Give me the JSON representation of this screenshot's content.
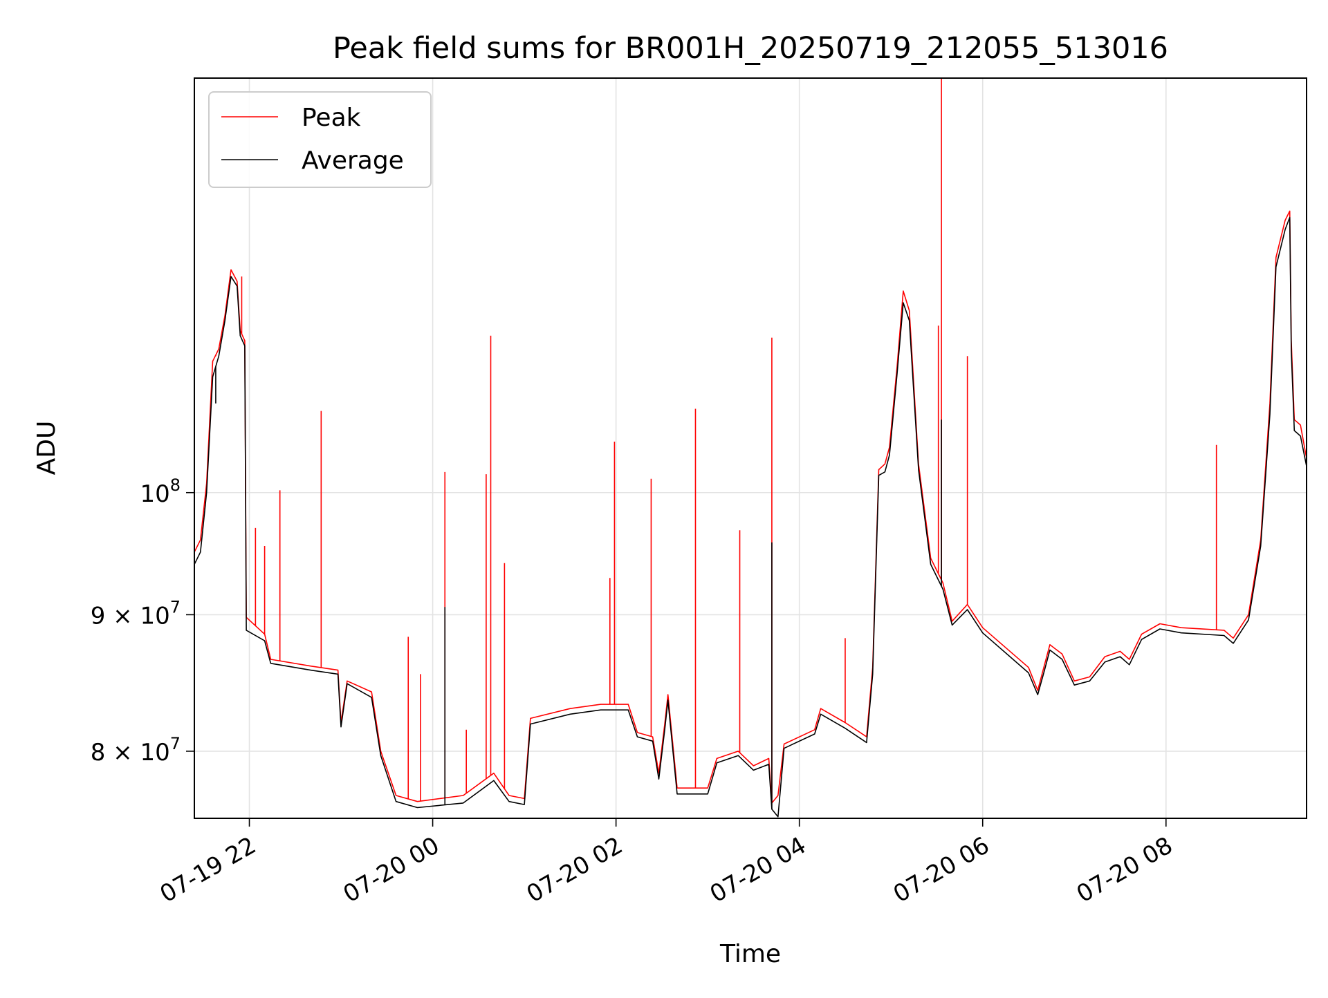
{
  "chart_data": {
    "type": "line",
    "title": "Peak field sums for BR001H_20250719_212055_513016",
    "xlabel": "Time",
    "ylabel": "ADU",
    "y_scale": "log",
    "ylim": [
      75500000,
      143000000
    ],
    "xlim": [
      "2025-07-19 21:24",
      "2025-07-20 09:32"
    ],
    "x_ticks": [
      {
        "value": "2025-07-19 22:00",
        "label": "07-19 22"
      },
      {
        "value": "2025-07-20 00:00",
        "label": "07-20 00"
      },
      {
        "value": "2025-07-20 02:00",
        "label": "07-20 02"
      },
      {
        "value": "2025-07-20 04:00",
        "label": "07-20 04"
      },
      {
        "value": "2025-07-20 06:00",
        "label": "07-20 06"
      },
      {
        "value": "2025-07-20 08:00",
        "label": "07-20 08"
      }
    ],
    "y_ticks": [
      {
        "value": 80000000,
        "base": "8 × 10",
        "exp": "7"
      },
      {
        "value": 90000000,
        "base": "9 × 10",
        "exp": "7"
      },
      {
        "value": 100000000,
        "base": "10",
        "exp": "8"
      }
    ],
    "grid": true,
    "legend": "upper left",
    "series": [
      {
        "name": "Peak",
        "color": "#ff0000",
        "points": [
          [
            "2025-07-19 21:24",
            95.0
          ],
          [
            "2025-07-19 21:28",
            96.0
          ],
          [
            "2025-07-19 21:32",
            100.8
          ],
          [
            "2025-07-19 21:36",
            112.0
          ],
          [
            "2025-07-19 21:40",
            113.2
          ],
          [
            "2025-07-19 21:44",
            116.5
          ],
          [
            "2025-07-19 21:48",
            121.2
          ],
          [
            "2025-07-19 21:52",
            120.0
          ],
          [
            "2025-07-19 21:54",
            115.0
          ],
          [
            "2025-07-19 21:57",
            114.0
          ],
          [
            "2025-07-19 21:58",
            89.8
          ],
          [
            "2025-07-19 22:10",
            88.5
          ],
          [
            "2025-07-19 22:14",
            86.6
          ],
          [
            "2025-07-19 22:40",
            86.1
          ],
          [
            "2025-07-19 22:58",
            85.8
          ],
          [
            "2025-07-19 23:00",
            82.0
          ],
          [
            "2025-07-19 23:04",
            85.0
          ],
          [
            "2025-07-19 23:20",
            84.2
          ],
          [
            "2025-07-19 23:26",
            80.0
          ],
          [
            "2025-07-19 23:36",
            77.0
          ],
          [
            "2025-07-19 23:50",
            76.6
          ],
          [
            "2025-07-20 00:20",
            77.0
          ],
          [
            "2025-07-20 00:40",
            78.5
          ],
          [
            "2025-07-20 00:50",
            77.0
          ],
          [
            "2025-07-20 01:00",
            76.8
          ],
          [
            "2025-07-20 01:04",
            82.3
          ],
          [
            "2025-07-20 01:30",
            83.0
          ],
          [
            "2025-07-20 01:50",
            83.3
          ],
          [
            "2025-07-20 02:08",
            83.3
          ],
          [
            "2025-07-20 02:14",
            81.3
          ],
          [
            "2025-07-20 02:24",
            81.0
          ],
          [
            "2025-07-20 02:28",
            78.5
          ],
          [
            "2025-07-20 02:32",
            82.0
          ],
          [
            "2025-07-20 02:34",
            84.0
          ],
          [
            "2025-07-20 02:40",
            77.5
          ],
          [
            "2025-07-20 03:00",
            77.5
          ],
          [
            "2025-07-20 03:06",
            79.5
          ],
          [
            "2025-07-20 03:20",
            80.0
          ],
          [
            "2025-07-20 03:30",
            79.0
          ],
          [
            "2025-07-20 03:40",
            79.5
          ],
          [
            "2025-07-20 03:42",
            76.5
          ],
          [
            "2025-07-20 03:46",
            77.0
          ],
          [
            "2025-07-20 03:50",
            80.5
          ],
          [
            "2025-07-20 04:10",
            81.5
          ],
          [
            "2025-07-20 04:14",
            83.0
          ],
          [
            "2025-07-20 04:30",
            82.0
          ],
          [
            "2025-07-20 04:44",
            81.0
          ],
          [
            "2025-07-20 04:48",
            86.0
          ],
          [
            "2025-07-20 04:52",
            102.0
          ],
          [
            "2025-07-20 04:56",
            102.5
          ],
          [
            "2025-07-20 04:59",
            104.0
          ],
          [
            "2025-07-20 05:04",
            111.5
          ],
          [
            "2025-07-20 05:08",
            119.0
          ],
          [
            "2025-07-20 05:12",
            117.0
          ],
          [
            "2025-07-20 05:18",
            102.5
          ],
          [
            "2025-07-20 05:26",
            94.5
          ],
          [
            "2025-07-20 05:34",
            92.5
          ],
          [
            "2025-07-20 05:40",
            89.5
          ],
          [
            "2025-07-20 05:50",
            90.8
          ],
          [
            "2025-07-20 06:00",
            89.0
          ],
          [
            "2025-07-20 06:30",
            86.0
          ],
          [
            "2025-07-20 06:36",
            84.3
          ],
          [
            "2025-07-20 06:40",
            86.0
          ],
          [
            "2025-07-20 06:44",
            87.7
          ],
          [
            "2025-07-20 06:52",
            87.0
          ],
          [
            "2025-07-20 07:00",
            85.0
          ],
          [
            "2025-07-20 07:10",
            85.3
          ],
          [
            "2025-07-20 07:20",
            86.8
          ],
          [
            "2025-07-20 07:30",
            87.2
          ],
          [
            "2025-07-20 07:36",
            86.6
          ],
          [
            "2025-07-20 07:44",
            88.5
          ],
          [
            "2025-07-20 07:56",
            89.3
          ],
          [
            "2025-07-20 08:10",
            89.0
          ],
          [
            "2025-07-20 08:38",
            88.8
          ],
          [
            "2025-07-20 08:44",
            88.2
          ],
          [
            "2025-07-20 08:54",
            90.0
          ],
          [
            "2025-07-20 09:02",
            96.0
          ],
          [
            "2025-07-20 09:08",
            108.0
          ],
          [
            "2025-07-20 09:12",
            122.5
          ],
          [
            "2025-07-20 09:18",
            126.5
          ],
          [
            "2025-07-20 09:21",
            127.5
          ],
          [
            "2025-07-20 09:22",
            114.0
          ],
          [
            "2025-07-20 09:24",
            106.5
          ],
          [
            "2025-07-20 09:28",
            106.0
          ],
          [
            "2025-07-20 09:32",
            103.0
          ]
        ],
        "spikes": [
          [
            "2025-07-19 21:38",
            112.5
          ],
          [
            "2025-07-19 21:55",
            120.5
          ],
          [
            "2025-07-19 22:04",
            97.0
          ],
          [
            "2025-07-19 22:10",
            95.5
          ],
          [
            "2025-07-19 22:20",
            100.2
          ],
          [
            "2025-07-19 22:47",
            107.3
          ],
          [
            "2025-07-19 23:44",
            88.3
          ],
          [
            "2025-07-19 23:52",
            85.5
          ],
          [
            "2025-07-20 00:08",
            101.8
          ],
          [
            "2025-07-20 00:22",
            81.5
          ],
          [
            "2025-07-20 00:35",
            101.6
          ],
          [
            "2025-07-20 00:38",
            114.5
          ],
          [
            "2025-07-20 00:47",
            94.1
          ],
          [
            "2025-07-20 01:56",
            92.9
          ],
          [
            "2025-07-20 01:59",
            104.5
          ],
          [
            "2025-07-20 02:23",
            101.2
          ],
          [
            "2025-07-20 02:52",
            107.5
          ],
          [
            "2025-07-20 03:21",
            96.8
          ],
          [
            "2025-07-20 03:42",
            114.3
          ],
          [
            "2025-07-20 04:30",
            88.2
          ],
          [
            "2025-07-20 05:31",
            115.5
          ],
          [
            "2025-07-20 05:33",
            143.0
          ],
          [
            "2025-07-20 05:50",
            112.5
          ],
          [
            "2025-07-20 08:33",
            104.2
          ]
        ]
      },
      {
        "name": "Average",
        "color": "#000000",
        "points": [
          [
            "2025-07-19 21:24",
            94.0
          ],
          [
            "2025-07-19 21:28",
            95.0
          ],
          [
            "2025-07-19 21:32",
            100.0
          ],
          [
            "2025-07-19 21:36",
            110.5
          ],
          [
            "2025-07-19 21:40",
            112.5
          ],
          [
            "2025-07-19 21:44",
            116.0
          ],
          [
            "2025-07-19 21:48",
            120.5
          ],
          [
            "2025-07-19 21:52",
            119.5
          ],
          [
            "2025-07-19 21:54",
            114.5
          ],
          [
            "2025-07-19 21:57",
            113.5
          ],
          [
            "2025-07-19 21:58",
            88.8
          ],
          [
            "2025-07-19 22:10",
            88.0
          ],
          [
            "2025-07-19 22:14",
            86.3
          ],
          [
            "2025-07-19 22:40",
            85.8
          ],
          [
            "2025-07-19 22:58",
            85.5
          ],
          [
            "2025-07-19 23:00",
            81.7
          ],
          [
            "2025-07-19 23:04",
            84.8
          ],
          [
            "2025-07-19 23:20",
            83.8
          ],
          [
            "2025-07-19 23:26",
            79.7
          ],
          [
            "2025-07-19 23:36",
            76.6
          ],
          [
            "2025-07-19 23:50",
            76.2
          ],
          [
            "2025-07-20 00:20",
            76.5
          ],
          [
            "2025-07-20 00:40",
            78.0
          ],
          [
            "2025-07-20 00:50",
            76.6
          ],
          [
            "2025-07-20 01:00",
            76.4
          ],
          [
            "2025-07-20 01:04",
            81.9
          ],
          [
            "2025-07-20 01:30",
            82.6
          ],
          [
            "2025-07-20 01:50",
            82.9
          ],
          [
            "2025-07-20 02:08",
            82.9
          ],
          [
            "2025-07-20 02:14",
            81.0
          ],
          [
            "2025-07-20 02:24",
            80.7
          ],
          [
            "2025-07-20 02:28",
            78.1
          ],
          [
            "2025-07-20 02:32",
            81.6
          ],
          [
            "2025-07-20 02:34",
            83.6
          ],
          [
            "2025-07-20 02:40",
            77.1
          ],
          [
            "2025-07-20 03:00",
            77.1
          ],
          [
            "2025-07-20 03:06",
            79.2
          ],
          [
            "2025-07-20 03:20",
            79.7
          ],
          [
            "2025-07-20 03:30",
            78.7
          ],
          [
            "2025-07-20 03:40",
            79.1
          ],
          [
            "2025-07-20 03:42",
            76.1
          ],
          [
            "2025-07-20 03:46",
            75.6
          ],
          [
            "2025-07-20 03:50",
            80.2
          ],
          [
            "2025-07-20 04:10",
            81.2
          ],
          [
            "2025-07-20 04:14",
            82.6
          ],
          [
            "2025-07-20 04:30",
            81.6
          ],
          [
            "2025-07-20 04:44",
            80.6
          ],
          [
            "2025-07-20 04:48",
            85.5
          ],
          [
            "2025-07-20 04:52",
            101.5
          ],
          [
            "2025-07-20 04:56",
            101.8
          ],
          [
            "2025-07-20 04:59",
            103.3
          ],
          [
            "2025-07-20 05:04",
            110.8
          ],
          [
            "2025-07-20 05:08",
            117.8
          ],
          [
            "2025-07-20 05:12",
            116.0
          ],
          [
            "2025-07-20 05:18",
            102.0
          ],
          [
            "2025-07-20 05:26",
            94.0
          ],
          [
            "2025-07-20 05:34",
            92.0
          ],
          [
            "2025-07-20 05:40",
            89.2
          ],
          [
            "2025-07-20 05:50",
            90.4
          ],
          [
            "2025-07-20 06:00",
            88.6
          ],
          [
            "2025-07-20 06:30",
            85.6
          ],
          [
            "2025-07-20 06:36",
            84.0
          ],
          [
            "2025-07-20 06:40",
            85.6
          ],
          [
            "2025-07-20 06:44",
            87.3
          ],
          [
            "2025-07-20 06:52",
            86.6
          ],
          [
            "2025-07-20 07:00",
            84.7
          ],
          [
            "2025-07-20 07:10",
            85.0
          ],
          [
            "2025-07-20 07:20",
            86.4
          ],
          [
            "2025-07-20 07:30",
            86.8
          ],
          [
            "2025-07-20 07:36",
            86.2
          ],
          [
            "2025-07-20 07:44",
            88.1
          ],
          [
            "2025-07-20 07:56",
            88.9
          ],
          [
            "2025-07-20 08:10",
            88.6
          ],
          [
            "2025-07-20 08:38",
            88.4
          ],
          [
            "2025-07-20 08:44",
            87.8
          ],
          [
            "2025-07-20 08:54",
            89.6
          ],
          [
            "2025-07-20 09:02",
            95.5
          ],
          [
            "2025-07-20 09:08",
            107.0
          ],
          [
            "2025-07-20 09:12",
            121.5
          ],
          [
            "2025-07-20 09:18",
            125.5
          ],
          [
            "2025-07-20 09:21",
            126.8
          ],
          [
            "2025-07-20 09:22",
            113.0
          ],
          [
            "2025-07-20 09:24",
            105.5
          ],
          [
            "2025-07-20 09:28",
            105.0
          ],
          [
            "2025-07-20 09:32",
            102.3
          ]
        ],
        "spikes": [
          [
            "2025-07-19 21:38",
            108.0
          ],
          [
            "2025-07-20 00:08",
            90.6
          ],
          [
            "2025-07-20 03:42",
            95.8
          ],
          [
            "2025-07-20 05:33",
            106.5
          ]
        ]
      }
    ],
    "value_unit_note": "y values in units of 10^6 ADU"
  }
}
